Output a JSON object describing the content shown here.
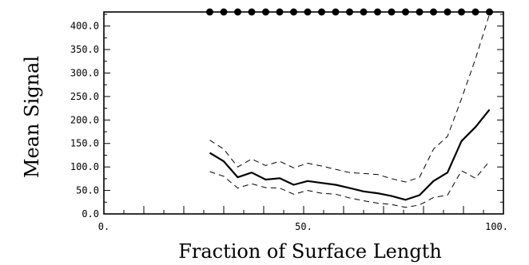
{
  "chart_data": {
    "type": "line",
    "xlabel": "Fraction of Surface Length",
    "ylabel": "Mean Signal",
    "xlim": [
      0,
      100
    ],
    "ylim": [
      0,
      430
    ],
    "xticks": [
      0,
      50,
      100
    ],
    "xtick_labels": [
      "0.",
      "50.",
      "100."
    ],
    "yticks": [
      0,
      50,
      100,
      150,
      200,
      250,
      300,
      350,
      400
    ],
    "ytick_labels": [
      "0.0",
      "50.0",
      "100.0",
      "150.0",
      "200.0",
      "250.0",
      "300.0",
      "350.0",
      "400.0"
    ],
    "x": [
      26.5,
      30,
      33.5,
      37,
      40.5,
      44,
      47.5,
      51,
      54.5,
      58,
      61.5,
      65,
      68.5,
      72,
      75.5,
      79,
      82.5,
      86,
      89.5,
      93,
      96.5
    ],
    "series": [
      {
        "role": "mean",
        "style": "solid",
        "values": [
          130,
          112,
          78,
          88,
          73,
          76,
          62,
          70,
          66,
          62,
          55,
          48,
          44,
          38,
          30,
          40,
          70,
          88,
          155,
          185,
          222
        ]
      },
      {
        "role": "upper",
        "style": "dashed",
        "values": [
          157,
          138,
          100,
          117,
          103,
          112,
          98,
          108,
          102,
          95,
          88,
          86,
          84,
          75,
          68,
          78,
          138,
          165,
          245,
          330,
          425
        ]
      },
      {
        "role": "lower",
        "style": "dashed",
        "values": [
          90,
          80,
          55,
          64,
          56,
          55,
          42,
          50,
          44,
          42,
          34,
          28,
          23,
          20,
          14,
          19,
          35,
          40,
          92,
          76,
          112
        ]
      }
    ],
    "markers_top_x": [
      26.5,
      30,
      33.5,
      37,
      40.5,
      44,
      47.5,
      51,
      54.5,
      58,
      61.5,
      65,
      68.5,
      72,
      75.5,
      79,
      82.5,
      86,
      89.5,
      93,
      96.5
    ],
    "grid": false,
    "legend": "none"
  }
}
